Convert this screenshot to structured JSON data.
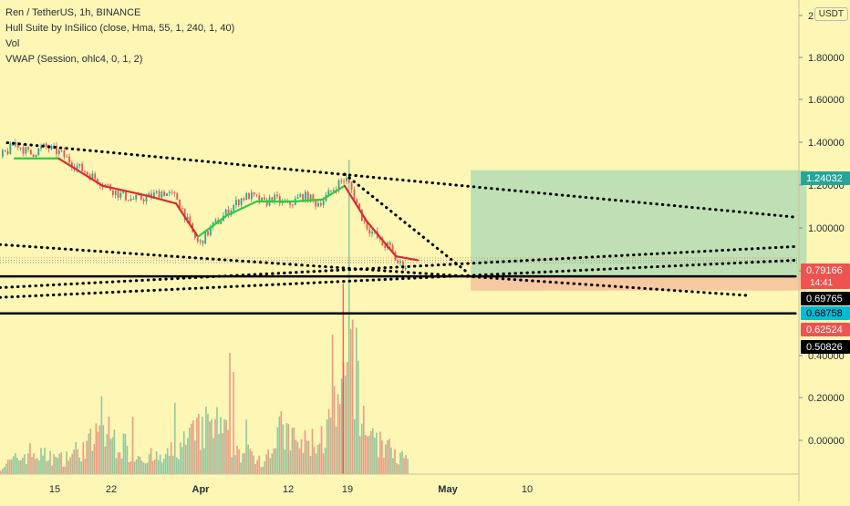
{
  "header": {
    "symbol_line": "Ren / TetherUS, 1h, BINANCE",
    "indicators": [
      "Hull Suite by InSilico (close, Hma, 55, 1, 240, 1, 40)",
      "Vol",
      "VWAP (Session, ohlc4, 0, 1, 2)"
    ],
    "quote_currency": "USDT"
  },
  "colors": {
    "background": "#fdf6b5",
    "candle_up": "#26a69a",
    "candle_down": "#ef5350",
    "hull_up": "#2ecc40",
    "hull_down": "#d32f2f",
    "profit_zone": "#bfe0b4",
    "loss_zone": "#f6c9a0",
    "trendline": "#000000"
  },
  "chart_data": {
    "type": "line",
    "title": "Ren / TetherUS, 1h, BINANCE",
    "x_ticks": [
      "15",
      "22",
      "Apr",
      "12",
      "19",
      "May",
      "10"
    ],
    "y_ticks": [
      "2",
      "1.80000",
      "1.60000",
      "1.40000",
      "1.20000",
      "1.00000",
      "0.80000",
      "0.40000",
      "0.20000",
      "0.00000"
    ],
    "ylim": [
      -0.14,
      2.03
    ],
    "price_labels": [
      {
        "value": 1.24032,
        "text": "1.24032",
        "bg": "#26a69a",
        "fg": "#ffffff"
      },
      {
        "value": 0.79166,
        "text": "0.79166",
        "bg": "#ef5350",
        "fg": "#ffffff",
        "sub": "14:41"
      },
      {
        "value": 0.69765,
        "text": "0.69765",
        "bg": "#000000",
        "fg": "#ffffff"
      },
      {
        "value": 0.68758,
        "text": "0.68758",
        "bg": "#00bcd4",
        "fg": "#000000"
      },
      {
        "value": 0.62524,
        "text": "0.62524",
        "bg": "#ef5350",
        "fg": "#ffffff"
      },
      {
        "value": 0.50826,
        "text": "0.50826",
        "bg": "#000000",
        "fg": "#ffffff"
      }
    ],
    "price_series": [
      [
        0,
        1.31
      ],
      [
        1,
        1.34
      ],
      [
        2,
        1.38
      ],
      [
        4,
        1.32
      ],
      [
        6,
        1.36
      ],
      [
        8,
        1.33
      ],
      [
        10,
        1.27
      ],
      [
        12,
        1.22
      ],
      [
        14,
        1.17
      ],
      [
        16,
        1.12
      ],
      [
        18,
        1.09
      ],
      [
        20,
        1.1
      ],
      [
        22,
        1.13
      ],
      [
        24,
        1.1
      ],
      [
        25,
        1.02
      ],
      [
        26,
        0.93
      ],
      [
        27,
        0.86
      ],
      [
        28,
        0.91
      ],
      [
        29,
        0.96
      ],
      [
        30,
        0.99
      ],
      [
        31,
        1.03
      ],
      [
        32,
        1.07
      ],
      [
        33,
        1.1
      ],
      [
        34,
        1.11
      ],
      [
        35,
        1.09
      ],
      [
        36,
        1.07
      ],
      [
        37,
        1.1
      ],
      [
        38,
        1.08
      ],
      [
        39,
        1.06
      ],
      [
        40,
        1.08
      ],
      [
        41,
        1.11
      ],
      [
        42,
        1.1
      ],
      [
        43,
        1.07
      ],
      [
        44,
        1.09
      ],
      [
        45,
        1.13
      ],
      [
        46,
        1.17
      ],
      [
        47,
        1.2
      ],
      [
        48,
        1.13
      ],
      [
        49,
        1.02
      ],
      [
        50,
        0.95
      ],
      [
        51,
        0.91
      ],
      [
        52,
        0.86
      ],
      [
        53,
        0.85
      ],
      [
        54,
        0.77
      ],
      [
        55,
        0.75
      ],
      [
        56,
        0.76
      ],
      [
        57,
        0.79
      ]
    ],
    "hull_series": [
      [
        2,
        1.3
      ],
      [
        8,
        1.3
      ],
      [
        14,
        1.16
      ],
      [
        20,
        1.11
      ],
      [
        24,
        1.07
      ],
      [
        27,
        0.9
      ],
      [
        31,
        1.01
      ],
      [
        35,
        1.08
      ],
      [
        40,
        1.08
      ],
      [
        44,
        1.09
      ],
      [
        47,
        1.16
      ],
      [
        50,
        0.98
      ],
      [
        54,
        0.8
      ],
      [
        57,
        0.78
      ]
    ],
    "volume_series": [
      [
        0,
        0.01
      ],
      [
        4,
        0.03
      ],
      [
        8,
        0.02
      ],
      [
        12,
        0.04
      ],
      [
        14,
        0.06
      ],
      [
        18,
        0.03
      ],
      [
        22,
        0.02
      ],
      [
        26,
        0.05
      ],
      [
        29,
        0.07
      ],
      [
        33,
        0.03
      ],
      [
        36,
        0.02
      ],
      [
        38,
        0.06
      ],
      [
        41,
        0.04
      ],
      [
        44,
        0.05
      ],
      [
        46,
        0.09
      ],
      [
        47,
        0.11
      ],
      [
        48,
        0.19
      ],
      [
        49,
        0.08
      ],
      [
        52,
        0.04
      ],
      [
        55,
        0.02
      ],
      [
        57,
        0.01
      ]
    ],
    "trade_zone": {
      "x_start": 64.2,
      "x_end": 110,
      "entry": 0.69765,
      "target": 1.24032,
      "stop": 0.62524
    },
    "trendlines": [
      {
        "from": [
          1,
          1.38
        ],
        "to": [
          108.5,
          1.0
        ],
        "style": "dotted"
      },
      {
        "from": [
          47,
          1.22
        ],
        "to": [
          64,
          0.71
        ],
        "style": "dotted"
      },
      {
        "from": [
          0,
          0.86
        ],
        "to": [
          102,
          0.6
        ],
        "style": "dotted"
      },
      {
        "from": [
          0,
          0.64
        ],
        "to": [
          108.5,
          0.85
        ],
        "style": "dotted"
      },
      {
        "from": [
          0,
          0.59
        ],
        "to": [
          108.5,
          0.78
        ],
        "style": "dotted"
      },
      {
        "from": [
          0,
          0.69765
        ],
        "to": [
          108.5,
          0.69765
        ],
        "style": "solid"
      },
      {
        "from": [
          0,
          0.50826
        ],
        "to": [
          108.5,
          0.50826
        ],
        "style": "solid"
      }
    ],
    "price_guides": [
      0.79166,
      0.78,
      0.768
    ]
  }
}
